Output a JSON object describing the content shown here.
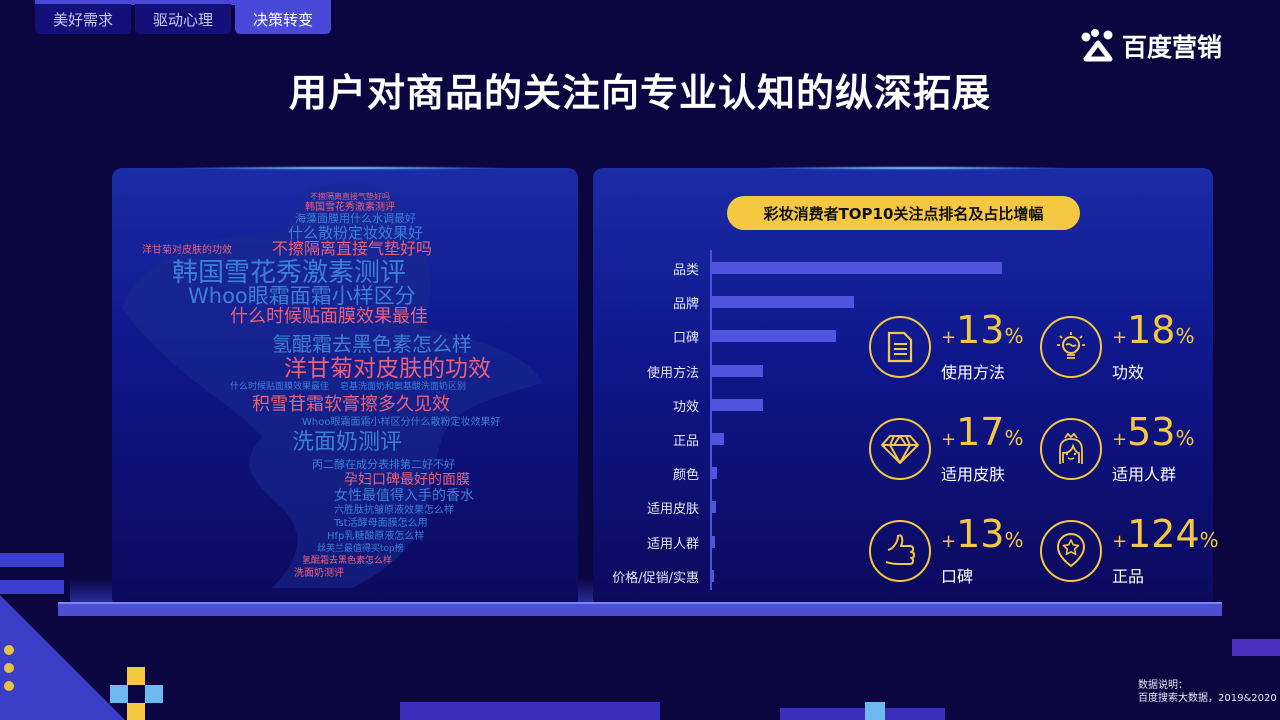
{
  "tabs": [
    {
      "label": "美好需求"
    },
    {
      "label": "驱动心理"
    },
    {
      "label": "决策转变",
      "active": true
    }
  ],
  "logo": {
    "text": "百度营销",
    "icon": "baidu-paw-icon"
  },
  "title": "用户对商品的关注向专业认知的纵深拓展",
  "wordcloud": {
    "colors": {
      "pink": "#e8607a",
      "blue": "#3d7fd8"
    },
    "words": [
      {
        "text": "不擦隔离直接气垫好吗",
        "color": "pink"
      },
      {
        "text": "韩国雪花秀激素测评",
        "color": "pink"
      },
      {
        "text": "海藻面膜用什么水调最好",
        "color": "blue"
      },
      {
        "text": "什么散粉定妆效果好",
        "color": "blue"
      },
      {
        "text": "不擦隔离直接气垫好吗",
        "color": "pink"
      },
      {
        "text": "洋甘菊对皮肤的功效",
        "color": "pink"
      },
      {
        "text": "韩国雪花秀激素测评",
        "color": "blue"
      },
      {
        "text": "Whoo眼霜面霜小样区分",
        "color": "blue"
      },
      {
        "text": "什么时候贴面膜效果最佳",
        "color": "pink"
      },
      {
        "text": "氢醌霜去黑色素怎么样",
        "color": "blue"
      },
      {
        "text": "洋甘菊对皮肤的功效",
        "color": "pink"
      },
      {
        "text": "什么时候贴面膜效果最佳",
        "color": "blue"
      },
      {
        "text": "皂基洗面奶和氨基酸洗面奶区别",
        "color": "blue"
      },
      {
        "text": "积雪苷霜软膏擦多久见效",
        "color": "pink"
      },
      {
        "text": "Whoo眼霜面霜小样区分什么散粉定妆效果好",
        "color": "blue"
      },
      {
        "text": "洗面奶测评",
        "color": "blue"
      },
      {
        "text": "丙二醇在成分表排第二好不好",
        "color": "blue"
      },
      {
        "text": "孕妇口碑最好的面膜",
        "color": "pink"
      },
      {
        "text": "女性最值得入手的香水",
        "color": "blue"
      },
      {
        "text": "六胜肽抗皱原液效果怎么样",
        "color": "blue"
      },
      {
        "text": "Tst活酵母面膜怎么用",
        "color": "blue"
      },
      {
        "text": "Hfp乳糖酸原液怎么样",
        "color": "blue"
      },
      {
        "text": "丝芙兰最值得买top榜",
        "color": "blue"
      },
      {
        "text": "氢醌霜去黑色素怎么样",
        "color": "pink"
      },
      {
        "text": "洗面奶测评",
        "color": "pink"
      }
    ]
  },
  "chart_data": {
    "type": "bar",
    "orientation": "horizontal",
    "title": "彩妆消费者TOP10关注点排名及占比增幅",
    "categories": [
      "品类",
      "品牌",
      "口碑",
      "使用方法",
      "功效",
      "正品",
      "颜色",
      "适用皮肤",
      "适用人群",
      "价格/促销/实惠"
    ],
    "values": [
      100,
      49,
      43,
      18,
      18,
      4.5,
      2,
      1.7,
      1.4,
      1
    ],
    "bar_color": "#5254e0"
  },
  "stats": [
    {
      "value": "13",
      "label": "使用方法",
      "icon": "document-icon"
    },
    {
      "value": "18",
      "label": "功效",
      "icon": "lightbulb-icon"
    },
    {
      "value": "17",
      "label": "适用皮肤",
      "icon": "diamond-icon"
    },
    {
      "value": "53",
      "label": "适用人群",
      "icon": "girl-face-icon"
    },
    {
      "value": "13",
      "label": "口碑",
      "icon": "thumbs-up-icon"
    },
    {
      "value": "124",
      "label": "正品",
      "icon": "star-badge-icon"
    }
  ],
  "stat_sign": "+",
  "stat_unit": "%",
  "accent": "#f5c842",
  "note": {
    "heading": "数据说明：",
    "source": "百度搜索大数据，2019&2020"
  }
}
